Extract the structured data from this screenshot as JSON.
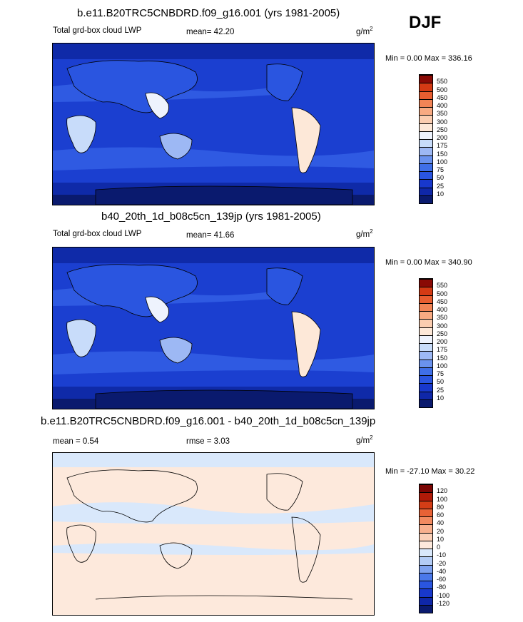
{
  "season": "DJF",
  "panels": [
    {
      "title": "b.e11.B20TRC5CNBDRD.f09_g16.001 (yrs 1981-2005)",
      "left_label": "Total grd-box cloud LWP",
      "mean_text": "mean=  42.20",
      "units": "g/m",
      "units_exp": "2",
      "minmax": "Min =   0.00 Max = 336.16"
    },
    {
      "title": "b40_20th_1d_b08c5cn_139jp (yrs 1981-2005)",
      "left_label": "Total grd-box cloud LWP",
      "mean_text": "mean=  41.66",
      "units": "g/m",
      "units_exp": "2",
      "minmax": "Min =   0.00 Max = 340.90"
    },
    {
      "title": "b.e11.B20TRC5CNBDRD.f09_g16.001 - b40_20th_1d_b08c5cn_139jp",
      "left_label": "mean =   0.54",
      "mean_text": "rmse =   3.03",
      "units": "g/m",
      "units_exp": "2",
      "minmax": "Min = -27.10 Max =  30.22"
    }
  ],
  "chart_data": [
    {
      "type": "heatmap",
      "title": "b.e11.B20TRC5CNBDRD.f09_g16.001 (yrs 1981-2005)",
      "variable": "Total grd-box cloud LWP",
      "units": "g/m2",
      "mean": 42.2,
      "min": 0.0,
      "max": 336.16,
      "colorbar_levels": [
        10,
        25,
        50,
        75,
        100,
        150,
        175,
        200,
        250,
        300,
        350,
        400,
        450,
        500,
        550
      ],
      "colorbar_colors": [
        "#0a1a6e",
        "#0f27a8",
        "#1838cc",
        "#2a55e0",
        "#3f6fe8",
        "#6a92ee",
        "#9db8f4",
        "#c8dcfa",
        "#eef3fd",
        "#fde8d8",
        "#fbcdb0",
        "#f8aa82",
        "#f28456",
        "#e85d30",
        "#d43a14",
        "#8a0a05"
      ]
    },
    {
      "type": "heatmap",
      "title": "b40_20th_1d_b08c5cn_139jp (yrs 1981-2005)",
      "variable": "Total grd-box cloud LWP",
      "units": "g/m2",
      "mean": 41.66,
      "min": 0.0,
      "max": 340.9,
      "colorbar_levels": [
        10,
        25,
        50,
        75,
        100,
        150,
        175,
        200,
        250,
        300,
        350,
        400,
        450,
        500,
        550
      ],
      "colorbar_colors": [
        "#0a1a6e",
        "#0f27a8",
        "#1838cc",
        "#2a55e0",
        "#3f6fe8",
        "#6a92ee",
        "#9db8f4",
        "#c8dcfa",
        "#eef3fd",
        "#fde8d8",
        "#fbcdb0",
        "#f8aa82",
        "#f28456",
        "#e85d30",
        "#d43a14",
        "#8a0a05"
      ]
    },
    {
      "type": "heatmap",
      "title": "b.e11.B20TRC5CNBDRD.f09_g16.001 - b40_20th_1d_b08c5cn_139jp",
      "units": "g/m2",
      "mean": 0.54,
      "rmse": 3.03,
      "min": -27.1,
      "max": 30.22,
      "colorbar_levels": [
        -120,
        -100,
        -80,
        -60,
        -40,
        -20,
        -10,
        0,
        10,
        20,
        40,
        60,
        80,
        100,
        120
      ],
      "colorbar_colors": [
        "#0a1a6e",
        "#0f27a8",
        "#1838cc",
        "#2a55e0",
        "#4a78ea",
        "#7ea2f0",
        "#b3ccf6",
        "#d9e8fb",
        "#fde9dc",
        "#fbd0b8",
        "#f8b08e",
        "#f28a60",
        "#e86236",
        "#d43d16",
        "#b01a08",
        "#7a0503"
      ]
    }
  ]
}
